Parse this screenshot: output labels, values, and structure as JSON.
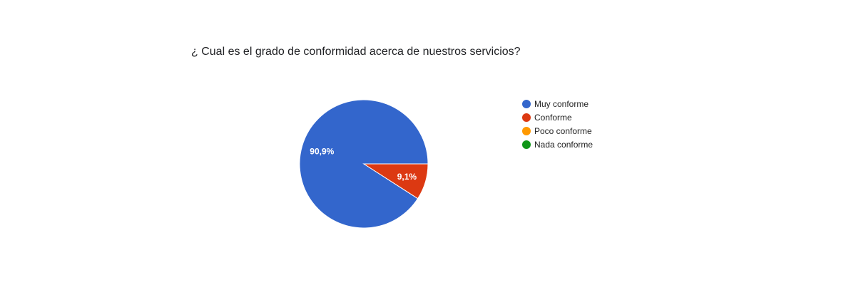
{
  "question": {
    "title": "¿ Cual es el grado de conformidad acerca de nuestros servicios?"
  },
  "chart_data": {
    "type": "pie",
    "title": "¿ Cual es el grado de conformidad acerca de nuestros servicios?",
    "categories": [
      "Muy conforme",
      "Conforme",
      "Poco conforme",
      "Nada conforme"
    ],
    "values": [
      90.9,
      9.1,
      0,
      0
    ],
    "data_labels": [
      "90,9%",
      "9,1%",
      "",
      ""
    ],
    "colors": [
      "#3366cc",
      "#dc3912",
      "#ff9900",
      "#109618"
    ],
    "legend_position": "right"
  }
}
